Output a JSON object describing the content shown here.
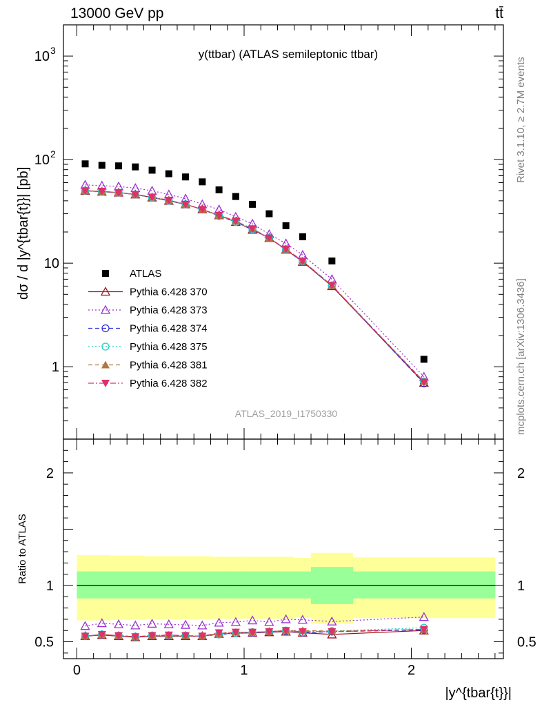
{
  "header": {
    "left": "13000 GeV pp",
    "right": "tt̄"
  },
  "side_labels": {
    "rivet": "Rivet 3.1.10, ≥ 2.7M events",
    "mcplots": "mcplots.cern.ch [arXiv:1306.3436]"
  },
  "chart_data": [
    {
      "type": "scatter",
      "title": "y(ttbar) (ATLAS semileptonic ttbar)",
      "ylabel": "dσ / d |y^{tbar{t}}| [pb]",
      "xlabel": "|y^{tbar{t}}|",
      "watermark": "ATLAS_2019_I1750330",
      "yscale": "log",
      "xlim": [
        -0.08,
        2.55
      ],
      "ylim": [
        0.2,
        2000
      ],
      "xticks": [
        "0",
        "1",
        "2"
      ],
      "yticks": [
        "1",
        "10",
        "10^2",
        "10^3"
      ],
      "x": [
        0.05,
        0.15,
        0.25,
        0.35,
        0.45,
        0.55,
        0.65,
        0.75,
        0.85,
        0.95,
        1.05,
        1.15,
        1.25,
        1.35,
        1.525,
        2.075
      ],
      "series": [
        {
          "name": "ATLAS",
          "color": "#000000",
          "marker": "square",
          "dash": "none",
          "values": [
            91,
            88,
            87,
            85,
            79,
            73,
            68,
            61,
            51,
            44,
            37,
            30,
            23,
            18,
            10.5,
            1.18
          ]
        },
        {
          "name": "Pythia 6.428 370",
          "color": "#a01020",
          "marker": "triangle-open",
          "dash": "solid",
          "values": [
            50,
            49,
            48,
            46,
            43,
            40,
            37,
            33,
            29,
            25,
            21,
            17.5,
            13.5,
            10.3,
            6.0,
            0.7
          ]
        },
        {
          "name": "Pythia 6.428 373",
          "color": "#9b30d0",
          "marker": "triangle-open",
          "dash": "2,3",
          "values": [
            57,
            56,
            55,
            53,
            50,
            46,
            42,
            37,
            33,
            28,
            24,
            19,
            15.5,
            12,
            7.0,
            0.8
          ]
        },
        {
          "name": "Pythia 6.428 374",
          "color": "#3030e0",
          "marker": "circle-open",
          "dash": "6,4",
          "values": [
            50,
            49,
            48,
            46,
            43,
            40,
            37,
            33,
            28.5,
            25,
            21,
            17.5,
            13.5,
            10.3,
            6.1,
            0.69
          ]
        },
        {
          "name": "Pythia 6.428 375",
          "color": "#20d0c0",
          "marker": "circle-open",
          "dash": "2,3",
          "values": [
            50,
            49,
            48,
            46,
            43,
            40,
            37,
            33,
            28.5,
            25,
            21.2,
            17.5,
            13.6,
            10.4,
            6.1,
            0.72
          ]
        },
        {
          "name": "Pythia 6.428 381",
          "color": "#b07840",
          "marker": "triangle-filled",
          "dash": "6,4",
          "values": [
            50,
            49.5,
            48,
            46,
            43.5,
            40.5,
            37,
            33,
            29,
            25.5,
            21.5,
            17.5,
            13.7,
            10.5,
            6.1,
            0.72
          ]
        },
        {
          "name": "Pythia 6.428 382",
          "color": "#e0306a",
          "marker": "triangle-down-filled",
          "dash": "8,3,2,3",
          "values": [
            50,
            49.5,
            48,
            46,
            43.5,
            40.5,
            37,
            33,
            29,
            25.5,
            21.5,
            17.5,
            13.7,
            10.5,
            6.1,
            0.71
          ]
        }
      ],
      "legend": {
        "position": "middle-left"
      }
    },
    {
      "type": "scatter",
      "ylabel": "Ratio to ATLAS",
      "xlim": [
        -0.08,
        2.55
      ],
      "ylim": [
        0.35,
        2.3
      ],
      "yticks": [
        "0.5",
        "1",
        "2"
      ],
      "reference_line": 1,
      "bands": {
        "edges": [
          0,
          0.1,
          0.2,
          0.3,
          0.4,
          0.5,
          0.6,
          0.7,
          0.8,
          0.9,
          1.0,
          1.1,
          1.2,
          1.3,
          1.4,
          1.65,
          2.5
        ],
        "inner_up": [
          1.125,
          1.125,
          1.125,
          1.125,
          1.125,
          1.125,
          1.125,
          1.125,
          1.125,
          1.125,
          1.125,
          1.125,
          1.125,
          1.125,
          1.165,
          1.125
        ],
        "inner_down": [
          0.885,
          0.885,
          0.885,
          0.885,
          0.885,
          0.885,
          0.885,
          0.885,
          0.885,
          0.885,
          0.885,
          0.885,
          0.885,
          0.885,
          0.835,
          0.885
        ],
        "outer_up": [
          1.27,
          1.27,
          1.265,
          1.265,
          1.26,
          1.26,
          1.26,
          1.26,
          1.255,
          1.255,
          1.255,
          1.255,
          1.255,
          1.245,
          1.29,
          1.25
        ],
        "outer_down": [
          0.69,
          0.69,
          0.695,
          0.695,
          0.7,
          0.7,
          0.7,
          0.7,
          0.705,
          0.705,
          0.705,
          0.705,
          0.705,
          0.715,
          0.66,
          0.71
        ],
        "inner_color": "#99ff99",
        "outer_color": "#ffff99"
      },
      "x": [
        0.05,
        0.15,
        0.25,
        0.35,
        0.45,
        0.55,
        0.65,
        0.75,
        0.85,
        0.95,
        1.05,
        1.15,
        1.25,
        1.35,
        1.525,
        2.075
      ],
      "series": [
        {
          "name": "Pythia 6.428 370",
          "values": [
            0.55,
            0.56,
            0.55,
            0.54,
            0.55,
            0.55,
            0.55,
            0.55,
            0.57,
            0.575,
            0.58,
            0.585,
            0.59,
            0.58,
            0.565,
            0.6
          ]
        },
        {
          "name": "Pythia 6.428 373",
          "values": [
            0.64,
            0.665,
            0.655,
            0.645,
            0.66,
            0.655,
            0.65,
            0.645,
            0.67,
            0.675,
            0.69,
            0.675,
            0.7,
            0.695,
            0.68,
            0.72
          ]
        },
        {
          "name": "Pythia 6.428 374",
          "values": [
            0.55,
            0.565,
            0.555,
            0.545,
            0.555,
            0.555,
            0.555,
            0.55,
            0.565,
            0.575,
            0.58,
            0.585,
            0.595,
            0.58,
            0.59,
            0.605
          ]
        },
        {
          "name": "Pythia 6.428 375",
          "values": [
            0.55,
            0.565,
            0.555,
            0.545,
            0.555,
            0.555,
            0.555,
            0.55,
            0.565,
            0.575,
            0.585,
            0.59,
            0.6,
            0.585,
            0.595,
            0.625
          ]
        },
        {
          "name": "Pythia 6.428 381",
          "values": [
            0.55,
            0.565,
            0.555,
            0.545,
            0.555,
            0.56,
            0.555,
            0.55,
            0.575,
            0.585,
            0.585,
            0.59,
            0.6,
            0.6,
            0.595,
            0.61
          ]
        },
        {
          "name": "Pythia 6.428 382",
          "values": [
            0.55,
            0.565,
            0.555,
            0.545,
            0.555,
            0.56,
            0.555,
            0.55,
            0.58,
            0.585,
            0.585,
            0.59,
            0.6,
            0.59,
            0.59,
            0.61
          ]
        }
      ]
    }
  ]
}
